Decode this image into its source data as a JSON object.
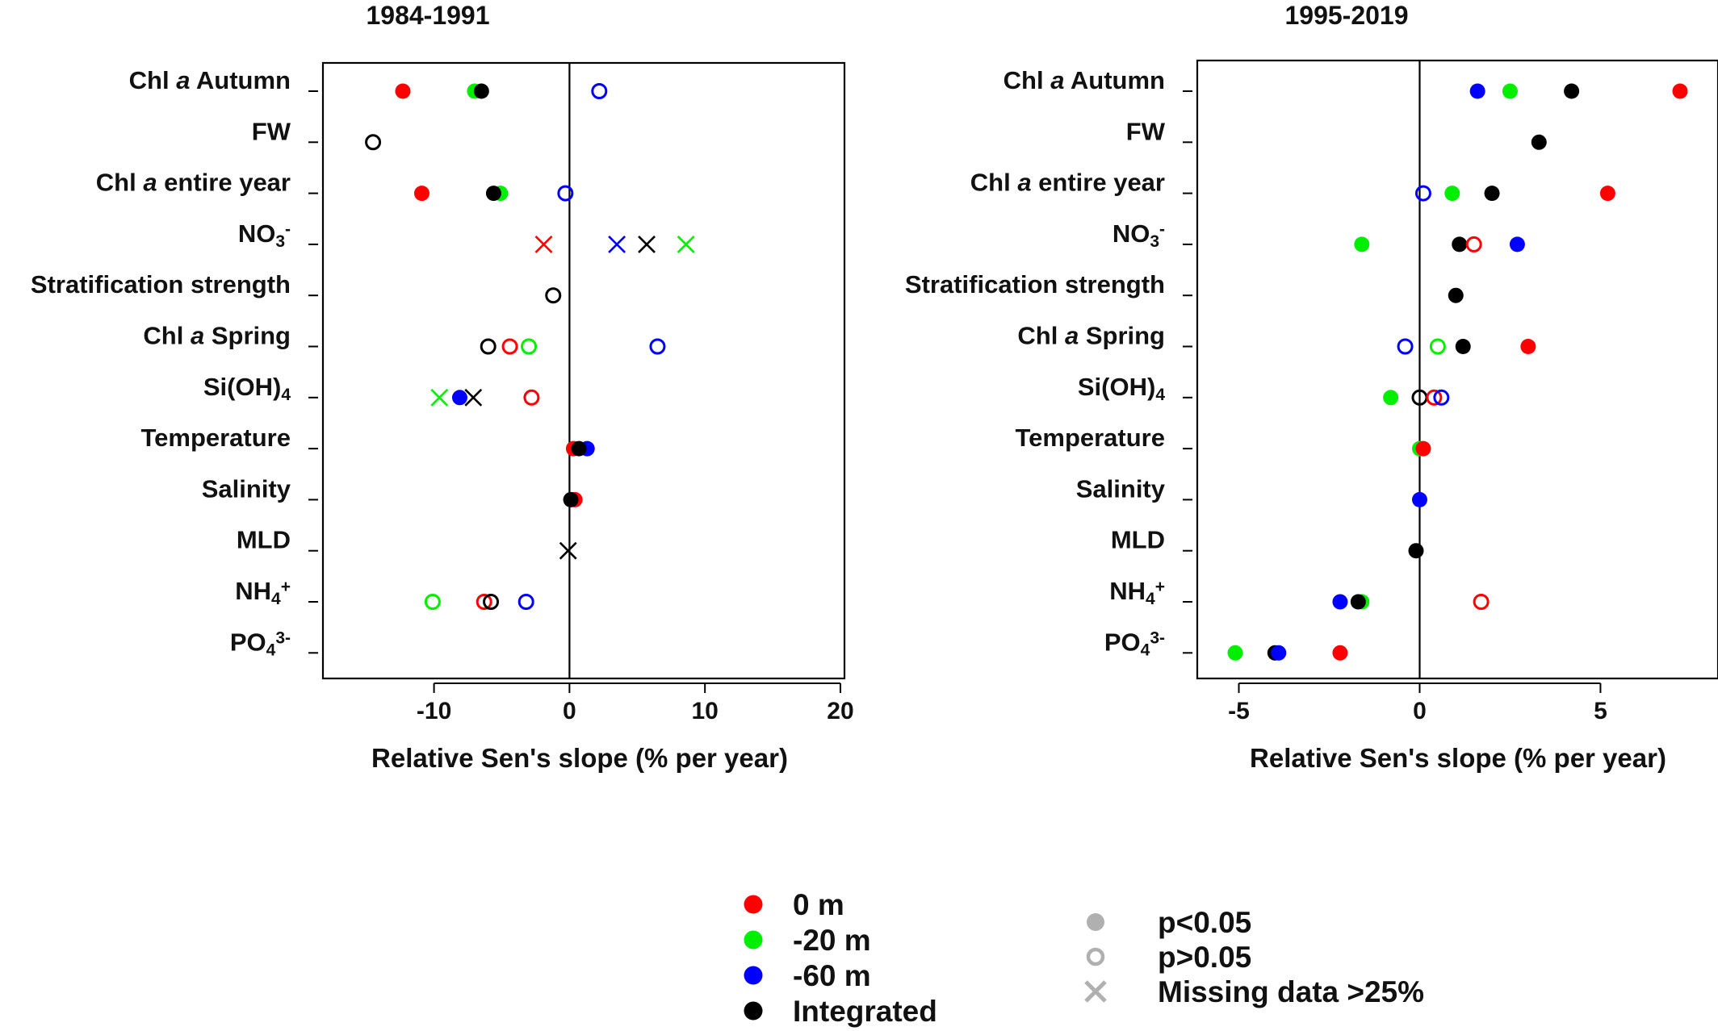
{
  "chart_data": [
    {
      "type": "scatter",
      "title": "1984-1991",
      "xlabel": "Relative  Sen's slope (% per year)",
      "xlim": [
        -18.2,
        20.3
      ],
      "xticks": [
        -10,
        0,
        10,
        20
      ],
      "xtick_labels": [
        "-10",
        "0",
        "10",
        "20"
      ],
      "categories": [
        {
          "parts": [
            {
              "t": "Chl "
            },
            {
              "t": "a",
              "i": true
            },
            {
              "t": " Autumn"
            }
          ]
        },
        {
          "parts": [
            {
              "t": "FW"
            }
          ]
        },
        {
          "parts": [
            {
              "t": "Chl "
            },
            {
              "t": "a",
              "i": true
            },
            {
              "t": " entire year"
            }
          ]
        },
        {
          "parts": [
            {
              "t": "NO"
            },
            {
              "t": "3",
              "sub": true
            },
            {
              "t": "-",
              "sup": true
            }
          ]
        },
        {
          "parts": [
            {
              "t": "Stratification strength"
            }
          ]
        },
        {
          "parts": [
            {
              "t": "Chl "
            },
            {
              "t": "a",
              "i": true
            },
            {
              "t": " Spring"
            }
          ]
        },
        {
          "parts": [
            {
              "t": "Si(OH)"
            },
            {
              "t": "4",
              "sub": true
            }
          ]
        },
        {
          "parts": [
            {
              "t": "Temperature"
            }
          ]
        },
        {
          "parts": [
            {
              "t": "Salinity"
            }
          ]
        },
        {
          "parts": [
            {
              "t": "MLD"
            }
          ]
        },
        {
          "parts": [
            {
              "t": "NH"
            },
            {
              "t": "4",
              "sub": true
            },
            {
              "t": "+",
              "sup": true
            }
          ]
        },
        {
          "parts": [
            {
              "t": "PO"
            },
            {
              "t": "4",
              "sub": true
            },
            {
              "t": "3-",
              "sup": true
            }
          ]
        }
      ],
      "points": [
        {
          "row": 0,
          "x": -12.3,
          "series": "0 m",
          "status": "sig"
        },
        {
          "row": 0,
          "x": -7.0,
          "series": "-20 m",
          "status": "sig"
        },
        {
          "row": 0,
          "x": -6.5,
          "series": "Integrated",
          "status": "sig"
        },
        {
          "row": 0,
          "x": 2.2,
          "series": "-60 m",
          "status": "ns"
        },
        {
          "row": 1,
          "x": -14.5,
          "series": "Integrated",
          "status": "ns"
        },
        {
          "row": 2,
          "x": -10.9,
          "series": "0 m",
          "status": "sig"
        },
        {
          "row": 2,
          "x": -5.1,
          "series": "-20 m",
          "status": "sig"
        },
        {
          "row": 2,
          "x": -5.6,
          "series": "Integrated",
          "status": "sig"
        },
        {
          "row": 2,
          "x": -0.3,
          "series": "-60 m",
          "status": "ns"
        },
        {
          "row": 3,
          "x": -1.9,
          "series": "0 m",
          "status": "missing"
        },
        {
          "row": 3,
          "x": 3.5,
          "series": "-60 m",
          "status": "missing"
        },
        {
          "row": 3,
          "x": 5.7,
          "series": "Integrated",
          "status": "missing"
        },
        {
          "row": 3,
          "x": 8.6,
          "series": "-20 m",
          "status": "missing"
        },
        {
          "row": 4,
          "x": -1.2,
          "series": "Integrated",
          "status": "ns"
        },
        {
          "row": 5,
          "x": -6.0,
          "series": "Integrated",
          "status": "ns"
        },
        {
          "row": 5,
          "x": -4.4,
          "series": "0 m",
          "status": "ns"
        },
        {
          "row": 5,
          "x": -3.0,
          "series": "-20 m",
          "status": "ns"
        },
        {
          "row": 5,
          "x": 6.5,
          "series": "-60 m",
          "status": "ns"
        },
        {
          "row": 6,
          "x": -9.6,
          "series": "-20 m",
          "status": "missing"
        },
        {
          "row": 6,
          "x": -8.1,
          "series": "-60 m",
          "status": "sig"
        },
        {
          "row": 6,
          "x": -7.1,
          "series": "Integrated",
          "status": "missing"
        },
        {
          "row": 6,
          "x": -2.8,
          "series": "0 m",
          "status": "ns"
        },
        {
          "row": 7,
          "x": 0.3,
          "series": "0 m",
          "status": "sig"
        },
        {
          "row": 7,
          "x": 1.3,
          "series": "-60 m",
          "status": "sig"
        },
        {
          "row": 7,
          "x": 0.7,
          "series": "Integrated",
          "status": "sig"
        },
        {
          "row": 8,
          "x": 0.4,
          "series": "0 m",
          "status": "sig"
        },
        {
          "row": 8,
          "x": 0.1,
          "series": "Integrated",
          "status": "sig"
        },
        {
          "row": 9,
          "x": -0.1,
          "series": "Integrated",
          "status": "missing"
        },
        {
          "row": 10,
          "x": -10.1,
          "series": "-20 m",
          "status": "ns"
        },
        {
          "row": 10,
          "x": -6.3,
          "series": "0 m",
          "status": "ns"
        },
        {
          "row": 10,
          "x": -5.8,
          "series": "Integrated",
          "status": "ns"
        },
        {
          "row": 10,
          "x": -3.2,
          "series": "-60 m",
          "status": "ns"
        }
      ]
    },
    {
      "type": "scatter",
      "title": "1995-2019",
      "xlabel": "Relative  Sen's slope (% per year)",
      "xlim": [
        -6.15,
        8.25
      ],
      "xticks": [
        -5,
        0,
        5
      ],
      "xtick_labels": [
        "-5",
        "0",
        "5"
      ],
      "categories": [
        {
          "parts": [
            {
              "t": "Chl "
            },
            {
              "t": "a",
              "i": true
            },
            {
              "t": " Autumn"
            }
          ]
        },
        {
          "parts": [
            {
              "t": "FW"
            }
          ]
        },
        {
          "parts": [
            {
              "t": "Chl "
            },
            {
              "t": "a",
              "i": true
            },
            {
              "t": " entire year"
            }
          ]
        },
        {
          "parts": [
            {
              "t": "NO"
            },
            {
              "t": "3",
              "sub": true
            },
            {
              "t": "-",
              "sup": true
            }
          ]
        },
        {
          "parts": [
            {
              "t": "Stratification strength"
            }
          ]
        },
        {
          "parts": [
            {
              "t": "Chl "
            },
            {
              "t": "a",
              "i": true
            },
            {
              "t": " Spring"
            }
          ]
        },
        {
          "parts": [
            {
              "t": "Si(OH)"
            },
            {
              "t": "4",
              "sub": true
            }
          ]
        },
        {
          "parts": [
            {
              "t": "Temperature"
            }
          ]
        },
        {
          "parts": [
            {
              "t": "Salinity"
            }
          ]
        },
        {
          "parts": [
            {
              "t": "MLD"
            }
          ]
        },
        {
          "parts": [
            {
              "t": "NH"
            },
            {
              "t": "4",
              "sub": true
            },
            {
              "t": "+",
              "sup": true
            }
          ]
        },
        {
          "parts": [
            {
              "t": "PO"
            },
            {
              "t": "4",
              "sub": true
            },
            {
              "t": "3-",
              "sup": true
            }
          ]
        }
      ],
      "points": [
        {
          "row": 0,
          "x": 1.6,
          "series": "-60 m",
          "status": "sig"
        },
        {
          "row": 0,
          "x": 2.5,
          "series": "-20 m",
          "status": "sig"
        },
        {
          "row": 0,
          "x": 4.2,
          "series": "Integrated",
          "status": "sig"
        },
        {
          "row": 0,
          "x": 7.2,
          "series": "0 m",
          "status": "sig"
        },
        {
          "row": 1,
          "x": 3.3,
          "series": "Integrated",
          "status": "sig"
        },
        {
          "row": 2,
          "x": 0.1,
          "series": "-60 m",
          "status": "ns"
        },
        {
          "row": 2,
          "x": 0.9,
          "series": "-20 m",
          "status": "sig"
        },
        {
          "row": 2,
          "x": 2.0,
          "series": "Integrated",
          "status": "sig"
        },
        {
          "row": 2,
          "x": 5.2,
          "series": "0 m",
          "status": "sig"
        },
        {
          "row": 3,
          "x": -1.6,
          "series": "-20 m",
          "status": "sig"
        },
        {
          "row": 3,
          "x": 1.1,
          "series": "Integrated",
          "status": "sig"
        },
        {
          "row": 3,
          "x": 1.5,
          "series": "0 m",
          "status": "ns"
        },
        {
          "row": 3,
          "x": 2.7,
          "series": "-60 m",
          "status": "sig"
        },
        {
          "row": 4,
          "x": 1.0,
          "series": "Integrated",
          "status": "sig"
        },
        {
          "row": 5,
          "x": -0.4,
          "series": "-60 m",
          "status": "ns"
        },
        {
          "row": 5,
          "x": 0.5,
          "series": "-20 m",
          "status": "ns"
        },
        {
          "row": 5,
          "x": 1.2,
          "series": "Integrated",
          "status": "sig"
        },
        {
          "row": 5,
          "x": 3.0,
          "series": "0 m",
          "status": "sig"
        },
        {
          "row": 6,
          "x": -0.8,
          "series": "-20 m",
          "status": "sig"
        },
        {
          "row": 6,
          "x": 0.0,
          "series": "Integrated",
          "status": "ns"
        },
        {
          "row": 6,
          "x": 0.4,
          "series": "0 m",
          "status": "ns"
        },
        {
          "row": 6,
          "x": 0.6,
          "series": "-60 m",
          "status": "ns"
        },
        {
          "row": 7,
          "x": 0.0,
          "series": "-20 m",
          "status": "sig"
        },
        {
          "row": 7,
          "x": 0.1,
          "series": "0 m",
          "status": "sig"
        },
        {
          "row": 8,
          "x": 0.0,
          "series": "-60 m",
          "status": "sig"
        },
        {
          "row": 9,
          "x": -0.1,
          "series": "Integrated",
          "status": "sig"
        },
        {
          "row": 10,
          "x": -2.2,
          "series": "-60 m",
          "status": "sig"
        },
        {
          "row": 10,
          "x": -1.6,
          "series": "-20 m",
          "status": "sig"
        },
        {
          "row": 10,
          "x": -1.7,
          "series": "Integrated",
          "status": "sig"
        },
        {
          "row": 10,
          "x": 1.7,
          "series": "0 m",
          "status": "ns"
        },
        {
          "row": 11,
          "x": -5.1,
          "series": "-20 m",
          "status": "sig"
        },
        {
          "row": 11,
          "x": -4.0,
          "series": "Integrated",
          "status": "sig"
        },
        {
          "row": 11,
          "x": -3.9,
          "series": "-60 m",
          "status": "sig"
        },
        {
          "row": 11,
          "x": -2.2,
          "series": "0 m",
          "status": "sig"
        }
      ]
    }
  ],
  "legend": {
    "series": [
      {
        "label": "0 m",
        "color": "#ff0000"
      },
      {
        "label": "-20 m",
        "color": "#00ee00"
      },
      {
        "label": "-60 m",
        "color": "#0000ff"
      },
      {
        "label": "Integrated",
        "color": "#000000"
      }
    ],
    "markers": [
      {
        "label": "p<0.05",
        "symbol": "filled-circle"
      },
      {
        "label": "p>0.05",
        "symbol": "open-circle"
      },
      {
        "label": "Missing  data >25%",
        "symbol": "cross"
      }
    ],
    "marker_color": "#b0b0b0"
  }
}
